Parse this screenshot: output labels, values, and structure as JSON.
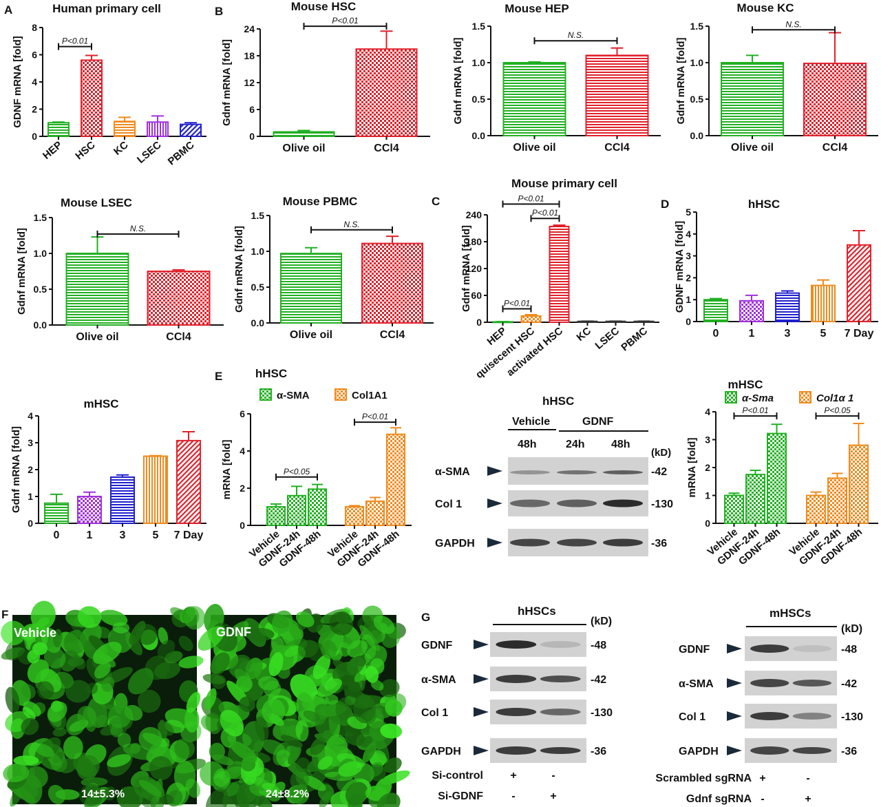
{
  "colors": {
    "HEP": "#22b022",
    "HSC": "#e0202a",
    "KC": "#f08a1c",
    "LSEC": "#a030e0",
    "PBMC": "#2020cc",
    "green": "#22b022",
    "red": "#e0202a",
    "orange": "#f08a1c",
    "purple": "#a030e0",
    "blue": "#2020cc"
  },
  "panels": {
    "A": "A",
    "B": "B",
    "C": "C",
    "D": "D",
    "E": "E",
    "F": "F",
    "G": "G"
  },
  "chart_data": [
    {
      "id": "A",
      "type": "bar",
      "title": "Human primary cell",
      "ylabel": "GDNF mRNA [fold]",
      "categories": [
        "HEP",
        "HSC",
        "KC",
        "LSEC",
        "PBMC"
      ],
      "values": [
        1.0,
        5.6,
        1.1,
        1.05,
        0.88
      ],
      "errors": [
        0.05,
        0.35,
        0.3,
        0.45,
        0.12
      ],
      "colors": [
        "#22b022",
        "#e0202a",
        "#f08a1c",
        "#a030e0",
        "#2020cc"
      ],
      "ylim": [
        0,
        8
      ],
      "yticks": [
        "0",
        "2",
        "4",
        "6",
        "8"
      ],
      "annotations": [
        {
          "from": 0,
          "to": 1,
          "label": "P<0.01",
          "y": 6.6
        }
      ]
    },
    {
      "id": "B1",
      "type": "bar",
      "title": "Mouse HSC",
      "ylabel": "Gdnf mRNA [fold]",
      "categories": [
        "Olive oil",
        "CCl4"
      ],
      "values": [
        1.0,
        19.5
      ],
      "errors": [
        0.3,
        4.0
      ],
      "colors": [
        "#22b022",
        "#e0202a"
      ],
      "ylim": [
        0,
        24
      ],
      "yticks": [
        "0",
        "6",
        "12",
        "18",
        "24"
      ],
      "annotations": [
        {
          "from": 0,
          "to": 1,
          "label": "P<0.01",
          "y": 24.6
        }
      ]
    },
    {
      "id": "B2",
      "type": "bar",
      "title": "Mouse HEP",
      "ylabel": "Gdnf mRNA [fold]",
      "categories": [
        "Olive oil",
        "CCl4"
      ],
      "values": [
        1.0,
        1.1
      ],
      "errors": [
        0.01,
        0.1
      ],
      "colors": [
        "#22b022",
        "#e0202a"
      ],
      "ylim": [
        0,
        1.5
      ],
      "yticks": [
        "0.0",
        "0.5",
        "1.0",
        "1.5"
      ],
      "annotations": [
        {
          "from": 0,
          "to": 1,
          "label": "N.S.",
          "y": 1.3
        }
      ]
    },
    {
      "id": "B3",
      "type": "bar",
      "title": "Mouse KC",
      "ylabel": "Gdnf mRNA [fold]",
      "categories": [
        "Olive oil",
        "CCl4"
      ],
      "values": [
        1.0,
        0.99
      ],
      "errors": [
        0.1,
        0.42
      ],
      "colors": [
        "#22b022",
        "#e0202a"
      ],
      "ylim": [
        0,
        1.5
      ],
      "yticks": [
        "0.0",
        "0.5",
        "1.0",
        "1.5"
      ],
      "annotations": [
        {
          "from": 0,
          "to": 1,
          "label": "N.S.",
          "y": 1.45
        }
      ]
    },
    {
      "id": "B4",
      "type": "bar",
      "title": "Mouse LSEC",
      "ylabel": "Gdnf mRNA [fold]",
      "categories": [
        "Olive oil",
        "CCl4"
      ],
      "values": [
        1.0,
        0.75
      ],
      "errors": [
        0.23,
        0.02
      ],
      "colors": [
        "#22b022",
        "#e0202a"
      ],
      "ylim": [
        0,
        1.5
      ],
      "yticks": [
        "0.0",
        "0.5",
        "1.0",
        "1.5"
      ],
      "annotations": [
        {
          "from": 0,
          "to": 1,
          "label": "N.S.",
          "y": 1.27
        }
      ]
    },
    {
      "id": "B5",
      "type": "bar",
      "title": "Mouse PBMC",
      "ylabel": "Gdnf mRNA [fold]",
      "categories": [
        "Olive oil",
        "CCl4"
      ],
      "values": [
        0.97,
        1.11
      ],
      "errors": [
        0.08,
        0.1
      ],
      "colors": [
        "#22b022",
        "#e0202a"
      ],
      "ylim": [
        0,
        1.5
      ],
      "yticks": [
        "0.0",
        "0.5",
        "1.0",
        "1.5"
      ],
      "annotations": [
        {
          "from": 0,
          "to": 1,
          "label": "N.S.",
          "y": 1.3
        }
      ]
    },
    {
      "id": "C",
      "type": "bar",
      "title": "Mouse primary cell",
      "ylabel": "Gdnf mRNA [fold]",
      "categories": [
        "HEP",
        "quisecent HSC",
        "activated HSC",
        "KC",
        "LSEC",
        "PBMC"
      ],
      "values": [
        1.0,
        14.0,
        214.0,
        2.0,
        2.0,
        2.0
      ],
      "errors": [
        0.5,
        3.0,
        3.0,
        0.5,
        0.5,
        0.5
      ],
      "colors": [
        "#22b022",
        "#f08a1c",
        "#e0202a",
        "#333333",
        "#333333",
        "#333333"
      ],
      "ylim": [
        0,
        240
      ],
      "yticks": [
        "0",
        "60",
        "120",
        "180",
        "240"
      ],
      "annotations": [
        {
          "from": 0,
          "to": 1,
          "label": "P<0.01",
          "y": 30
        },
        {
          "from": 1,
          "to": 2,
          "label": "P<0.01",
          "y": 232
        },
        {
          "from": 0,
          "to": 2,
          "label": "P<0.01",
          "y": 264
        }
      ]
    },
    {
      "id": "D",
      "type": "bar",
      "title": "hHSC",
      "ylabel": "GDNF mRNA [fold]",
      "categories": [
        "0",
        "1",
        "3",
        "5",
        "7 Day"
      ],
      "values": [
        1.0,
        0.95,
        1.3,
        1.65,
        3.5
      ],
      "errors": [
        0.05,
        0.25,
        0.1,
        0.25,
        0.65
      ],
      "colors": [
        "#22b022",
        "#a030e0",
        "#2020cc",
        "#f08a1c",
        "#e0202a"
      ],
      "ylim": [
        0,
        5
      ],
      "yticks": [
        "0",
        "1",
        "2",
        "3",
        "4",
        "5"
      ]
    },
    {
      "id": "D2",
      "type": "bar",
      "title": "mHSC",
      "ylabel": "Gdnf mRNA [fold]",
      "categories": [
        "0",
        "1",
        "3",
        "5",
        "7 Day"
      ],
      "values": [
        0.75,
        1.0,
        1.72,
        2.5,
        3.08
      ],
      "errors": [
        0.33,
        0.16,
        0.08,
        0.02,
        0.33
      ],
      "colors": [
        "#22b022",
        "#a030e0",
        "#2020cc",
        "#f08a1c",
        "#e0202a"
      ],
      "ylim": [
        0,
        4
      ],
      "yticks": [
        "0",
        "1",
        "2",
        "3",
        "4"
      ]
    },
    {
      "id": "E1",
      "type": "bar",
      "title": "hHSC",
      "ylabel": "mRNA [fold]",
      "legend": [
        {
          "name": "α-SMA",
          "color": "#22b022"
        },
        {
          "name": "Col1A1",
          "color": "#f08a1c"
        }
      ],
      "groups": [
        {
          "name": "α-SMA",
          "values": [
            1.0,
            1.6,
            1.95
          ],
          "errors": [
            0.15,
            0.5,
            0.25
          ]
        },
        {
          "name": "Col1A1",
          "values": [
            1.0,
            1.3,
            4.9
          ],
          "errors": [
            0.06,
            0.2,
            0.35
          ]
        }
      ],
      "categories": [
        "Vehicle",
        "GDNF-24h",
        "GDNF-48h"
      ],
      "ylim": [
        0,
        6
      ],
      "yticks": [
        "0",
        "2",
        "4",
        "6"
      ],
      "annotations": [
        {
          "group": 0,
          "from": 0,
          "to": 2,
          "label": "P<0.05",
          "y": 2.6
        },
        {
          "group": 1,
          "from": 0,
          "to": 2,
          "label": "P<0.01",
          "y": 5.55
        }
      ]
    },
    {
      "id": "E2",
      "type": "bar",
      "title": "mHSC",
      "ylabel": "mRNA [fold]",
      "legend": [
        {
          "name": "α-Sma",
          "color": "#22b022"
        },
        {
          "name": "Col1α 1",
          "color": "#f08a1c"
        }
      ],
      "groups": [
        {
          "name": "α-Sma",
          "values": [
            1.0,
            1.75,
            3.22
          ],
          "errors": [
            0.08,
            0.15,
            0.33
          ]
        },
        {
          "name": "Col1α 1",
          "values": [
            1.0,
            1.62,
            2.8
          ],
          "errors": [
            0.12,
            0.17,
            0.78
          ]
        }
      ],
      "categories": [
        "Vehicle",
        "GDNF-24h",
        "GDNF-48h"
      ],
      "ylim": [
        0,
        4
      ],
      "yticks": [
        "0",
        "1",
        "2",
        "3",
        "4"
      ],
      "annotations": [
        {
          "group": 0,
          "from": 0,
          "to": 2,
          "label": "P<0.01",
          "y": 3.85
        },
        {
          "group": 1,
          "from": 0,
          "to": 2,
          "label": "P<0.05",
          "y": 3.85
        }
      ]
    }
  ],
  "blot_e": {
    "title": "hHSC",
    "groups": [
      "Vehicle",
      "GDNF"
    ],
    "times": [
      "48h",
      "24h",
      "48h"
    ],
    "unit": "(kD)",
    "bands": [
      {
        "name": "α-SMA",
        "kd": "-42"
      },
      {
        "name": "Col 1",
        "kd": "-130"
      },
      {
        "name": "GAPDH",
        "kd": "-36"
      }
    ]
  },
  "fluor": {
    "vehicle_label": "Vehicle",
    "vehicle_pct": "14±5.3%",
    "gdnf_label": "GDNF",
    "gdnf_pct": "24±8.2%"
  },
  "blot_g1": {
    "title": "hHSCs",
    "unit": "(kD)",
    "bands": [
      {
        "name": "GDNF",
        "kd": "-48"
      },
      {
        "name": "α-SMA",
        "kd": "-42"
      },
      {
        "name": "Col 1",
        "kd": "-130"
      },
      {
        "name": "GAPDH",
        "kd": "-36"
      }
    ],
    "rows": [
      {
        "label": "Si-control",
        "marks": [
          "+",
          "-"
        ]
      },
      {
        "label": "Si-GDNF",
        "marks": [
          "-",
          "+"
        ]
      }
    ]
  },
  "blot_g2": {
    "title": "mHSCs",
    "unit": "(kD)",
    "bands": [
      {
        "name": "GDNF",
        "kd": "-48"
      },
      {
        "name": "α-SMA",
        "kd": "-42"
      },
      {
        "name": "Col 1",
        "kd": "-130"
      },
      {
        "name": "GAPDH",
        "kd": "-36"
      }
    ],
    "rows": [
      {
        "label": "Scrambled sgRNA",
        "marks": [
          "+",
          "-"
        ]
      },
      {
        "label": "Gdnf sgRNA",
        "marks": [
          "-",
          "+"
        ]
      }
    ]
  }
}
